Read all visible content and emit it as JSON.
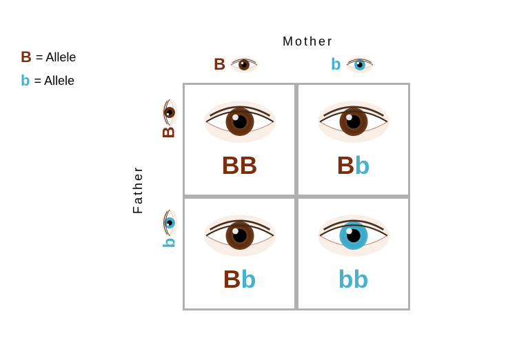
{
  "legend": {
    "dominant_symbol": "B",
    "dominant_text": "= Allele",
    "recessive_symbol": "b",
    "recessive_text": "= Allele"
  },
  "labels": {
    "mother": "Mother",
    "father": "Father"
  },
  "colors": {
    "brown": "#7a2e0e",
    "blue": "#47b2cc",
    "border": "#b0b0b0",
    "text": "#000000",
    "brown_iris": "#5c2a0a",
    "blue_iris": "#3aa8c9",
    "skin": "#f5e0d0"
  },
  "mother_alleles": [
    "B",
    "b"
  ],
  "father_alleles": [
    "B",
    "b"
  ],
  "punnett": {
    "type": "punnett-square",
    "grid_size": 2,
    "cells": [
      {
        "genotype": [
          "B",
          "B"
        ],
        "phenotype": "brown"
      },
      {
        "genotype": [
          "B",
          "b"
        ],
        "phenotype": "brown"
      },
      {
        "genotype": [
          "B",
          "b"
        ],
        "phenotype": "brown"
      },
      {
        "genotype": [
          "b",
          "b"
        ],
        "phenotype": "blue"
      }
    ]
  },
  "font": {
    "allele_header": 24,
    "genotype": 36,
    "label": 18
  }
}
